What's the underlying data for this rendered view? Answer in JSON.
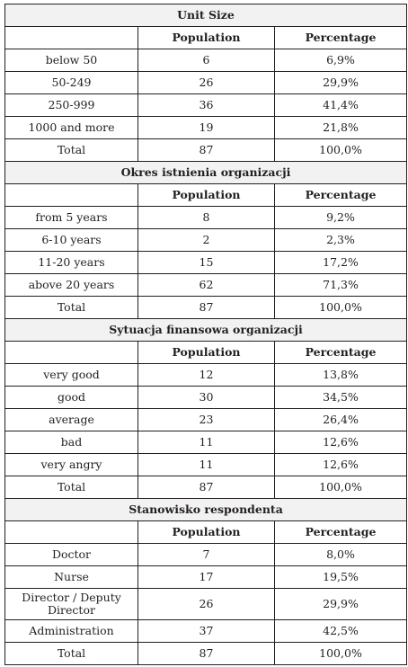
{
  "columns": {
    "population": "Population",
    "percentage": "Percentage"
  },
  "sections": [
    {
      "title": "Unit Size",
      "rows": [
        {
          "label": "below 50",
          "population": "6",
          "percentage": "6,9%"
        },
        {
          "label": "50-249",
          "population": "26",
          "percentage": "29,9%"
        },
        {
          "label": "250-999",
          "population": "36",
          "percentage": "41,4%"
        },
        {
          "label": "1000 and more",
          "population": "19",
          "percentage": "21,8%"
        },
        {
          "label": "Total",
          "population": "87",
          "percentage": "100,0%"
        }
      ]
    },
    {
      "title": "Okres istnienia organizacji",
      "rows": [
        {
          "label": "from 5 years",
          "population": "8",
          "percentage": "9,2%"
        },
        {
          "label": "6-10 years",
          "population": "2",
          "percentage": "2,3%"
        },
        {
          "label": "11-20 years",
          "population": "15",
          "percentage": "17,2%"
        },
        {
          "label": "above 20 years",
          "population": "62",
          "percentage": "71,3%"
        },
        {
          "label": "Total",
          "population": "87",
          "percentage": "100,0%"
        }
      ]
    },
    {
      "title": "Sytuacja finansowa organizacji",
      "rows": [
        {
          "label": "very good",
          "population": "12",
          "percentage": "13,8%"
        },
        {
          "label": "good",
          "population": "30",
          "percentage": "34,5%"
        },
        {
          "label": "average",
          "population": "23",
          "percentage": "26,4%"
        },
        {
          "label": "bad",
          "population": "11",
          "percentage": "12,6%"
        },
        {
          "label": "very angry",
          "population": "11",
          "percentage": "12,6%"
        },
        {
          "label": "Total",
          "population": "87",
          "percentage": "100,0%"
        }
      ]
    },
    {
      "title": "Stanowisko respondenta",
      "rows": [
        {
          "label": "Doctor",
          "population": "7",
          "percentage": "8,0%"
        },
        {
          "label": "Nurse",
          "population": "17",
          "percentage": "19,5%"
        },
        {
          "label": "Director / Deputy Director",
          "population": "26",
          "percentage": "29,9%"
        },
        {
          "label": "Administration",
          "population": "37",
          "percentage": "42,5%"
        },
        {
          "label": "Total",
          "population": "87",
          "percentage": "100,0%"
        }
      ]
    }
  ]
}
